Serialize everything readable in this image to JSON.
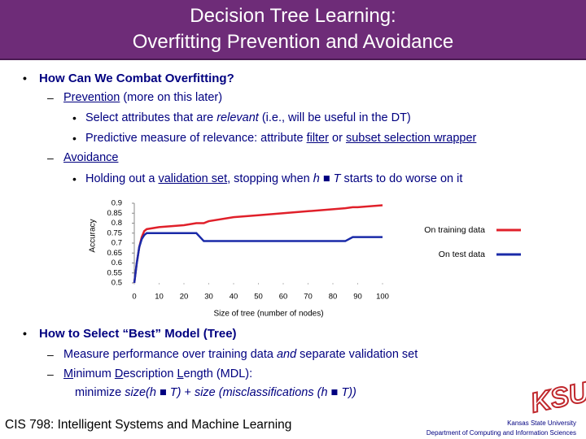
{
  "header": {
    "title": [
      "Decision Tree Learning:",
      "Overfitting Prevention and Avoidance"
    ]
  },
  "body": {
    "items": [
      {
        "text": "How Can We Combat Overfitting?",
        "lines": [
          [
            "Prevention",
            " (more on this later)"
          ],
          [
            "Select attributes that are ",
            "relevant",
            " (i.e., will be useful in the DT)"
          ],
          [
            "Predictive measure of relevance: attribute ",
            "filter",
            " or ",
            "subset selection wrapper"
          ],
          [
            "Avoidance"
          ],
          [
            "Holding out a ",
            "validation set",
            ", stopping when ",
            "h",
            " ■ ",
            "T",
            " starts to do worse on it"
          ]
        ]
      },
      {
        "text": "How to Select “Best” Model (Tree)",
        "lines": [
          [
            "Measure performance over training data ",
            "and",
            " separate validation set"
          ],
          [
            "M",
            "inimum ",
            "D",
            "escription ",
            "L",
            "ength (MDL):"
          ],
          [
            "minimize ",
            "size(h ■ T)",
            " + ",
            "size (misclassifications (h ■ T))"
          ]
        ]
      }
    ]
  },
  "chart_data": {
    "type": "line",
    "ylabel": "Accuracy",
    "xlabel": "Size of tree (number of nodes)",
    "x": [
      0,
      1,
      2,
      3,
      4,
      5,
      10,
      20,
      25,
      28,
      30,
      40,
      50,
      60,
      70,
      80,
      85,
      88,
      90,
      100
    ],
    "series": [
      {
        "name": "On training data",
        "color": "#e0202a",
        "values": [
          0.5,
          0.6,
          0.68,
          0.73,
          0.76,
          0.77,
          0.78,
          0.79,
          0.8,
          0.8,
          0.81,
          0.83,
          0.84,
          0.85,
          0.86,
          0.87,
          0.875,
          0.88,
          0.88,
          0.89
        ]
      },
      {
        "name": "On test data",
        "color": "#1a2aa8",
        "values": [
          0.5,
          0.6,
          0.68,
          0.72,
          0.74,
          0.75,
          0.75,
          0.75,
          0.75,
          0.71,
          0.71,
          0.71,
          0.71,
          0.71,
          0.71,
          0.71,
          0.71,
          0.73,
          0.73,
          0.73
        ]
      }
    ],
    "xlim": [
      0,
      100
    ],
    "ylim": [
      0.5,
      0.9
    ],
    "xticks": [
      0,
      10,
      20,
      30,
      40,
      50,
      60,
      70,
      80,
      90,
      100
    ],
    "yticks": [
      0.5,
      0.55,
      0.6,
      0.65,
      0.7,
      0.75,
      0.8,
      0.85,
      0.9
    ]
  },
  "footer": {
    "course": "CIS 798: Intelligent Systems and Machine Learning",
    "logo": "KSU",
    "university": "Kansas State University",
    "department": "Department of Computing and Information Sciences"
  }
}
